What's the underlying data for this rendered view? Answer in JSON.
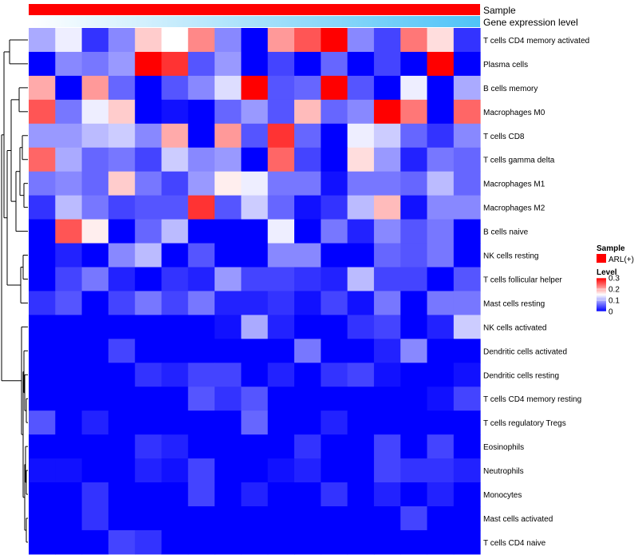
{
  "chart_data": {
    "type": "heatmap",
    "title": "",
    "annotation_bars": [
      {
        "label": "Sample",
        "style": "solid",
        "color": "#ff0000"
      },
      {
        "label": "Gene expression level",
        "style": "gradient",
        "from": "#ffffff",
        "to": "#4fc3f7"
      }
    ],
    "rows": [
      "T cells CD4 memory activated",
      "Plasma cells",
      "B cells memory",
      "Macrophages M0",
      "T cells CD8",
      "T cells gamma delta",
      "Macrophages M1",
      "Macrophages M2",
      "B cells naive",
      "NK cells resting",
      "T cells follicular helper",
      "Mast cells resting",
      "NK cells activated",
      "Dendritic cells activated",
      "Dendritic cells resting",
      "T cells CD4 memory resting",
      "T cells regulatory  Tregs",
      "Eosinophils",
      "Neutrophils",
      "Monocytes",
      "Mast cells activated",
      "T cells CD4 naive"
    ],
    "n_columns": 17,
    "values": [
      [
        0.1,
        0.14,
        0.03,
        0.08,
        0.18,
        0.15,
        0.22,
        0.08,
        0.0,
        0.21,
        0.25,
        0.3,
        0.08,
        0.04,
        0.23,
        0.17,
        0.03
      ],
      [
        0.0,
        0.08,
        0.07,
        0.09,
        0.3,
        0.27,
        0.05,
        0.09,
        0.0,
        0.04,
        0.0,
        0.06,
        0.0,
        0.04,
        0.0,
        0.3,
        0.0
      ],
      [
        0.2,
        0.0,
        0.21,
        0.06,
        0.0,
        0.05,
        0.08,
        0.13,
        0.3,
        0.05,
        0.06,
        0.3,
        0.05,
        0.0,
        0.14,
        0.0,
        0.1
      ],
      [
        0.25,
        0.07,
        0.14,
        0.18,
        0.0,
        0.01,
        0.0,
        0.06,
        0.09,
        0.05,
        0.19,
        0.06,
        0.08,
        0.3,
        0.23,
        0.0,
        0.24
      ],
      [
        0.09,
        0.09,
        0.11,
        0.12,
        0.08,
        0.2,
        0.0,
        0.21,
        0.05,
        0.27,
        0.06,
        0.0,
        0.14,
        0.12,
        0.06,
        0.03,
        0.08
      ],
      [
        0.24,
        0.1,
        0.06,
        0.07,
        0.04,
        0.12,
        0.08,
        0.09,
        0.0,
        0.24,
        0.04,
        0.0,
        0.17,
        0.09,
        0.02,
        0.07,
        0.06
      ],
      [
        0.07,
        0.08,
        0.06,
        0.18,
        0.07,
        0.04,
        0.09,
        0.16,
        0.14,
        0.07,
        0.07,
        0.01,
        0.07,
        0.07,
        0.06,
        0.11,
        0.06
      ],
      [
        0.03,
        0.11,
        0.07,
        0.04,
        0.05,
        0.05,
        0.27,
        0.05,
        0.12,
        0.06,
        0.01,
        0.03,
        0.11,
        0.19,
        0.01,
        0.08,
        0.08
      ],
      [
        0.0,
        0.25,
        0.16,
        0.0,
        0.06,
        0.11,
        0.0,
        0.0,
        0.0,
        0.14,
        0.0,
        0.07,
        0.02,
        0.08,
        0.05,
        0.07,
        0.0
      ],
      [
        0.0,
        0.02,
        0.0,
        0.08,
        0.11,
        0.0,
        0.05,
        0.0,
        0.0,
        0.08,
        0.08,
        0.0,
        0.0,
        0.06,
        0.05,
        0.07,
        0.0
      ],
      [
        0.0,
        0.04,
        0.07,
        0.02,
        0.0,
        0.03,
        0.02,
        0.09,
        0.04,
        0.04,
        0.03,
        0.02,
        0.11,
        0.04,
        0.04,
        0.0,
        0.05
      ],
      [
        0.03,
        0.05,
        0.0,
        0.04,
        0.07,
        0.04,
        0.07,
        0.02,
        0.02,
        0.03,
        0.01,
        0.04,
        0.01,
        0.07,
        0.0,
        0.07,
        0.07
      ],
      [
        0.0,
        0.0,
        0.0,
        0.0,
        0.0,
        0.0,
        0.0,
        0.01,
        0.1,
        0.02,
        0.0,
        0.0,
        0.03,
        0.04,
        0.0,
        0.02,
        0.12
      ],
      [
        0.0,
        0.0,
        0.0,
        0.04,
        0.0,
        0.0,
        0.0,
        0.0,
        0.0,
        0.0,
        0.07,
        0.0,
        0.0,
        0.02,
        0.08,
        0.0,
        0.0
      ],
      [
        0.0,
        0.0,
        0.0,
        0.0,
        0.03,
        0.02,
        0.04,
        0.04,
        0.0,
        0.02,
        0.0,
        0.03,
        0.04,
        0.01,
        0.0,
        0.0,
        0.01
      ],
      [
        0.0,
        0.0,
        0.0,
        0.0,
        0.0,
        0.0,
        0.05,
        0.03,
        0.05,
        0.0,
        0.0,
        0.0,
        0.0,
        0.0,
        0.0,
        0.01,
        0.04
      ],
      [
        0.05,
        0.0,
        0.02,
        0.0,
        0.0,
        0.0,
        0.0,
        0.0,
        0.06,
        0.0,
        0.0,
        0.02,
        0.0,
        0.0,
        0.0,
        0.0,
        0.0
      ],
      [
        0.0,
        0.0,
        0.0,
        0.0,
        0.03,
        0.02,
        0.0,
        0.0,
        0.0,
        0.0,
        0.03,
        0.0,
        0.0,
        0.04,
        0.0,
        0.04,
        0.0
      ],
      [
        0.01,
        0.01,
        0.0,
        0.0,
        0.02,
        0.01,
        0.04,
        0.0,
        0.0,
        0.01,
        0.02,
        0.0,
        0.0,
        0.04,
        0.03,
        0.03,
        0.02
      ],
      [
        0.0,
        0.0,
        0.03,
        0.0,
        0.0,
        0.0,
        0.04,
        0.0,
        0.02,
        0.0,
        0.0,
        0.03,
        0.0,
        0.02,
        0.0,
        0.02,
        0.0
      ],
      [
        0.0,
        0.0,
        0.03,
        0.0,
        0.0,
        0.0,
        0.0,
        0.0,
        0.0,
        0.0,
        0.0,
        0.0,
        0.0,
        0.0,
        0.04,
        0.0,
        0.0
      ],
      [
        0.0,
        0.0,
        0.0,
        0.04,
        0.03,
        0.0,
        0.0,
        0.0,
        0.0,
        0.0,
        0.0,
        0.0,
        0.0,
        0.0,
        0.0,
        0.0,
        0.0
      ]
    ],
    "color_scale": {
      "min": 0,
      "mid": 0.15,
      "max": 0.3,
      "low": "#0000ff",
      "midColor": "#ffffff",
      "high": "#ff0000"
    },
    "legend": {
      "position": "right",
      "sample_title": "Sample",
      "sample_entry": "ARL(+)",
      "sample_color": "#ff0000",
      "level_title": "Level",
      "level_ticks": [
        {
          "label": "0.3",
          "value": 0.3
        },
        {
          "label": "0.2",
          "value": 0.2
        },
        {
          "label": "0.1",
          "value": 0.1
        },
        {
          "label": "0",
          "value": 0
        }
      ]
    },
    "dendrogram": {
      "side": "left",
      "leaf_order": "rows"
    }
  }
}
